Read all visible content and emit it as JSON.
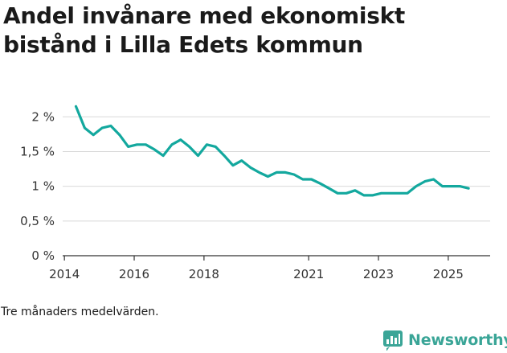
{
  "title_line1": "Andel invånare med ekonomiskt",
  "title_line2": "bistånd i Lilla Edets kommun",
  "note": "Tre månaders medelvärden.",
  "brand": "Newsworthy",
  "colors": {
    "line": "#13a89e",
    "grid": "#d9d9d9",
    "axis": "#333333",
    "brand": "#3aa597"
  },
  "chart_data": {
    "type": "line",
    "title": "Andel invånare med ekonomiskt bistånd i Lilla Edets kommun",
    "xlabel": "",
    "ylabel": "",
    "xlim": [
      2013.95,
      2026.2
    ],
    "ylim": [
      0,
      2.2
    ],
    "y_ticks": [
      0,
      0.5,
      1,
      1.5,
      2
    ],
    "y_tick_labels": [
      "0 %",
      "0,5 %",
      "1 %",
      "1,5 %",
      "2 %"
    ],
    "x_ticks": [
      2014,
      2016,
      2018,
      2021,
      2023,
      2025
    ],
    "x_tick_labels": [
      "2014",
      "2016",
      "2018",
      "2021",
      "2023",
      "2025"
    ],
    "grid": true,
    "series": [
      {
        "name": "Andel invånare med ekonomiskt bistånd",
        "x": [
          2014.33,
          2014.58,
          2014.83,
          2015.08,
          2015.33,
          2015.58,
          2015.83,
          2016.08,
          2016.33,
          2016.58,
          2016.83,
          2017.08,
          2017.33,
          2017.58,
          2017.83,
          2018.08,
          2018.33,
          2018.58,
          2018.83,
          2019.08,
          2019.33,
          2019.58,
          2019.83,
          2020.08,
          2020.33,
          2020.58,
          2020.83,
          2021.08,
          2021.33,
          2021.58,
          2021.83,
          2022.08,
          2022.33,
          2022.58,
          2022.83,
          2023.08,
          2023.33,
          2023.58,
          2023.83,
          2024.08,
          2024.33,
          2024.58,
          2024.83,
          2025.08,
          2025.33,
          2025.58
        ],
        "values": [
          2.15,
          1.84,
          1.74,
          1.84,
          1.87,
          1.74,
          1.57,
          1.6,
          1.6,
          1.53,
          1.44,
          1.6,
          1.67,
          1.57,
          1.44,
          1.6,
          1.57,
          1.44,
          1.3,
          1.37,
          1.27,
          1.2,
          1.14,
          1.2,
          1.2,
          1.17,
          1.1,
          1.1,
          1.04,
          0.97,
          0.9,
          0.9,
          0.94,
          0.87,
          0.87,
          0.9,
          0.9,
          0.9,
          0.9,
          1.0,
          1.07,
          1.1,
          1.0,
          1.0,
          1.0,
          0.97
        ]
      }
    ]
  }
}
